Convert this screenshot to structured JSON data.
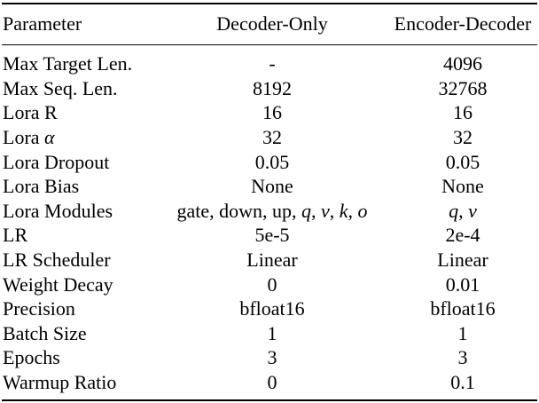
{
  "header": {
    "col1": "Parameter",
    "col2": "Decoder-Only",
    "col3": "Encoder-Decoder"
  },
  "rows": [
    {
      "param": "Max Target Len.",
      "dec": "-",
      "encdec": "4096"
    },
    {
      "param": "Max Seq. Len.",
      "dec": "8192",
      "encdec": "32768"
    },
    {
      "param": "Lora R",
      "dec": "16",
      "encdec": "16"
    },
    {
      "param_prefix": "Lora ",
      "param_math": "α",
      "dec": "32",
      "encdec": "32"
    },
    {
      "param": "Lora Dropout",
      "dec": "0.05",
      "encdec": "0.05"
    },
    {
      "param": "Lora Bias",
      "dec": "None",
      "encdec": "None"
    },
    {
      "param": "Lora Modules",
      "dec_text": "gate, down, up, ",
      "dec_math": [
        "q",
        "v",
        "k",
        "o"
      ],
      "encdec_math": [
        "q",
        "v"
      ]
    },
    {
      "param": "LR",
      "dec": "5e-5",
      "encdec": "2e-4"
    },
    {
      "param": "LR Scheduler",
      "dec": "Linear",
      "encdec": "Linear"
    },
    {
      "param": "Weight Decay",
      "dec": "0",
      "encdec": "0.01"
    },
    {
      "param": "Precision",
      "dec": "bfloat16",
      "encdec": "bfloat16"
    },
    {
      "param": "Batch Size",
      "dec": "1",
      "encdec": "1"
    },
    {
      "param": "Epochs",
      "dec": "3",
      "encdec": "3"
    },
    {
      "param": "Warmup Ratio",
      "dec": "0",
      "encdec": "0.1"
    }
  ]
}
